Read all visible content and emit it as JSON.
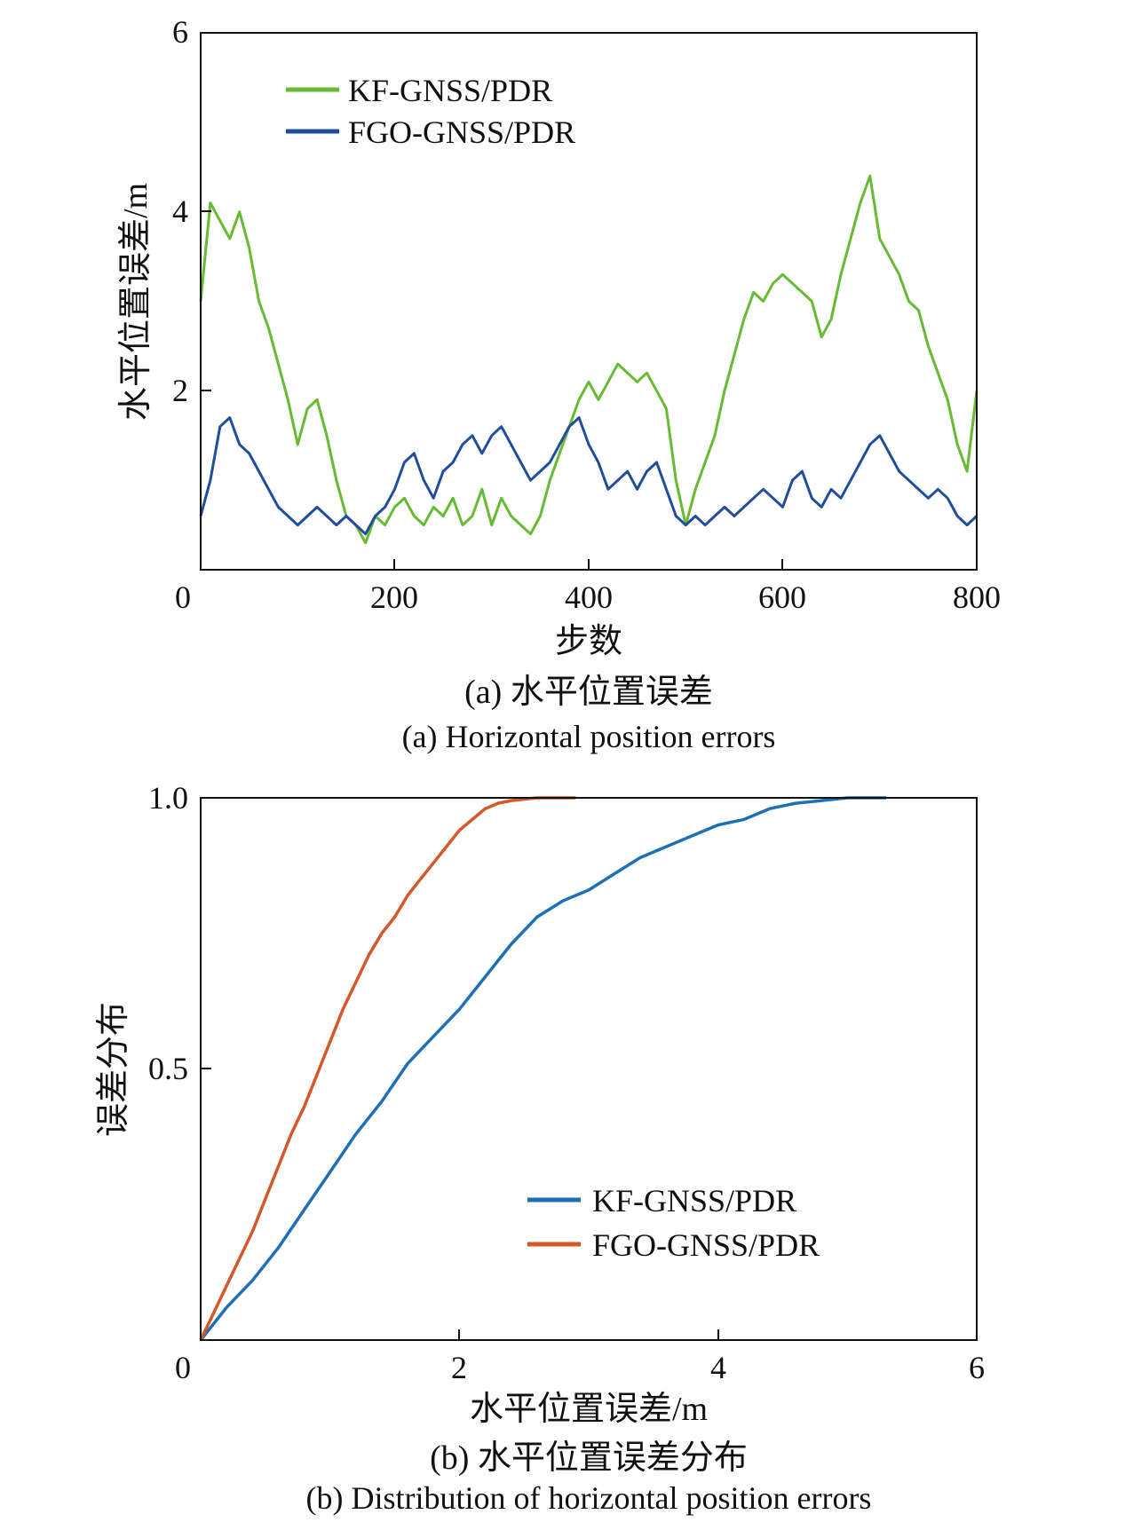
{
  "chart_data": [
    {
      "type": "line",
      "xlabel": "步数",
      "ylabel": "水平位置误差/m",
      "xlim": [
        0,
        800
      ],
      "ylim": [
        0,
        6
      ],
      "xticks": [
        "0",
        "200",
        "400",
        "600",
        "800"
      ],
      "yticks": [
        "2",
        "4",
        "6"
      ],
      "grid": false,
      "legend_position": "top-left",
      "caption_cn": "(a) 水平位置误差",
      "caption_en": "(a) Horizontal position errors",
      "series": [
        {
          "name": "KF-GNSS/PDR",
          "color": "#66bb33",
          "x": [
            0,
            10,
            20,
            30,
            40,
            50,
            60,
            70,
            80,
            90,
            100,
            110,
            120,
            130,
            140,
            150,
            160,
            170,
            180,
            190,
            200,
            210,
            220,
            230,
            240,
            250,
            260,
            270,
            280,
            290,
            300,
            310,
            320,
            330,
            340,
            350,
            360,
            370,
            380,
            390,
            400,
            410,
            420,
            430,
            440,
            450,
            460,
            470,
            480,
            490,
            500,
            510,
            520,
            530,
            540,
            550,
            560,
            570,
            580,
            590,
            600,
            610,
            620,
            630,
            640,
            650,
            660,
            670,
            680,
            690,
            700,
            710,
            720,
            730,
            740,
            750,
            760,
            770,
            780,
            790,
            800
          ],
          "y": [
            3.0,
            4.1,
            3.9,
            3.7,
            4.0,
            3.6,
            3.0,
            2.7,
            2.3,
            1.9,
            1.4,
            1.8,
            1.9,
            1.5,
            1.0,
            0.6,
            0.5,
            0.3,
            0.6,
            0.5,
            0.7,
            0.8,
            0.6,
            0.5,
            0.7,
            0.6,
            0.8,
            0.5,
            0.6,
            0.9,
            0.5,
            0.8,
            0.6,
            0.5,
            0.4,
            0.6,
            1.0,
            1.3,
            1.6,
            1.9,
            2.1,
            1.9,
            2.1,
            2.3,
            2.2,
            2.1,
            2.2,
            2.0,
            1.8,
            1.0,
            0.5,
            0.9,
            1.2,
            1.5,
            2.0,
            2.4,
            2.8,
            3.1,
            3.0,
            3.2,
            3.3,
            3.2,
            3.1,
            3.0,
            2.6,
            2.8,
            3.3,
            3.7,
            4.1,
            4.4,
            3.7,
            3.5,
            3.3,
            3.0,
            2.9,
            2.5,
            2.2,
            1.9,
            1.4,
            1.1,
            2.0
          ]
        },
        {
          "name": "FGO-GNSS/PDR",
          "color": "#1f4e9c",
          "x": [
            0,
            10,
            20,
            30,
            40,
            50,
            60,
            70,
            80,
            90,
            100,
            110,
            120,
            130,
            140,
            150,
            160,
            170,
            180,
            190,
            200,
            210,
            220,
            230,
            240,
            250,
            260,
            270,
            280,
            290,
            300,
            310,
            320,
            330,
            340,
            350,
            360,
            370,
            380,
            390,
            400,
            410,
            420,
            430,
            440,
            450,
            460,
            470,
            480,
            490,
            500,
            510,
            520,
            530,
            540,
            550,
            560,
            570,
            580,
            590,
            600,
            610,
            620,
            630,
            640,
            650,
            660,
            670,
            680,
            690,
            700,
            710,
            720,
            730,
            740,
            750,
            760,
            770,
            780,
            790,
            800
          ],
          "y": [
            0.6,
            1.0,
            1.6,
            1.7,
            1.4,
            1.3,
            1.1,
            0.9,
            0.7,
            0.6,
            0.5,
            0.6,
            0.7,
            0.6,
            0.5,
            0.6,
            0.5,
            0.4,
            0.6,
            0.7,
            0.9,
            1.2,
            1.3,
            1.0,
            0.8,
            1.1,
            1.2,
            1.4,
            1.5,
            1.3,
            1.5,
            1.6,
            1.4,
            1.2,
            1.0,
            1.1,
            1.2,
            1.4,
            1.6,
            1.7,
            1.4,
            1.2,
            0.9,
            1.0,
            1.1,
            0.9,
            1.1,
            1.2,
            0.9,
            0.6,
            0.5,
            0.6,
            0.5,
            0.6,
            0.7,
            0.6,
            0.7,
            0.8,
            0.9,
            0.8,
            0.7,
            1.0,
            1.1,
            0.8,
            0.7,
            0.9,
            0.8,
            1.0,
            1.2,
            1.4,
            1.5,
            1.3,
            1.1,
            1.0,
            0.9,
            0.8,
            0.9,
            0.8,
            0.6,
            0.5,
            0.6
          ]
        }
      ]
    },
    {
      "type": "line",
      "xlabel": "水平位置误差/m",
      "ylabel": "误差分布",
      "xlim": [
        0,
        6
      ],
      "ylim": [
        0,
        1
      ],
      "xticks": [
        "0",
        "2",
        "4",
        "6"
      ],
      "yticks": [
        "0.5",
        "1.0"
      ],
      "grid": false,
      "legend_position": "lower-right",
      "caption_cn": "(b) 水平位置误差分布",
      "caption_en": "(b) Distribution of horizontal position errors",
      "series": [
        {
          "name": "KF-GNSS/PDR",
          "color": "#1f6fb5",
          "x": [
            0,
            0.2,
            0.4,
            0.6,
            0.8,
            1.0,
            1.2,
            1.4,
            1.6,
            1.8,
            2.0,
            2.2,
            2.4,
            2.6,
            2.8,
            3.0,
            3.2,
            3.4,
            3.6,
            3.8,
            4.0,
            4.2,
            4.4,
            4.6,
            4.8,
            5.0,
            5.3
          ],
          "y": [
            0,
            0.06,
            0.11,
            0.17,
            0.24,
            0.31,
            0.38,
            0.44,
            0.51,
            0.56,
            0.61,
            0.67,
            0.73,
            0.78,
            0.81,
            0.83,
            0.86,
            0.89,
            0.91,
            0.93,
            0.95,
            0.96,
            0.98,
            0.99,
            0.995,
            1.0,
            1.0
          ]
        },
        {
          "name": "FGO-GNSS/PDR",
          "color": "#d4582a",
          "x": [
            0,
            0.1,
            0.2,
            0.3,
            0.4,
            0.5,
            0.6,
            0.7,
            0.8,
            0.9,
            1.0,
            1.1,
            1.2,
            1.3,
            1.4,
            1.5,
            1.6,
            1.7,
            1.8,
            1.9,
            2.0,
            2.1,
            2.2,
            2.3,
            2.4,
            2.6,
            2.9
          ],
          "y": [
            0,
            0.05,
            0.1,
            0.15,
            0.2,
            0.26,
            0.32,
            0.38,
            0.43,
            0.49,
            0.55,
            0.61,
            0.66,
            0.71,
            0.75,
            0.78,
            0.82,
            0.85,
            0.88,
            0.91,
            0.94,
            0.96,
            0.98,
            0.99,
            0.995,
            1.0,
            1.0
          ]
        }
      ]
    }
  ]
}
